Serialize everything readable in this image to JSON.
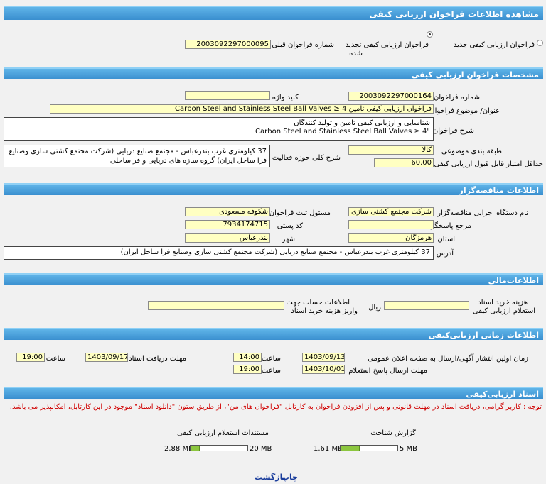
{
  "title": "مشاهده اطلاعات فراخوان ارزیابی کیفی",
  "type_section": {
    "new_label": "فراخوان  ارزیابی  کیفی  جدید",
    "renewed_label_line1": "فراخوان  ارزیابی  کیفی  تجدید",
    "renewed_label_line2": "شده",
    "prev_number_label": "شماره  فراخوان  قبلی",
    "prev_number_value": "2003092297000095"
  },
  "specs": {
    "header": "مشخصات فراخوان ارزیابی کیفی",
    "number_label": "شماره فراخوان",
    "number_value": "2003092297000164",
    "keyword_label": "کلید واژه",
    "keyword_value": "",
    "subject_label": "عنوان/ موضوع فراخوان",
    "subject_value": "فراخوان ارزیابی کیفی تامین Carbon Steel and Stainless Steel Ball Valves ≥ 4",
    "description_label": "شرح فراخوان",
    "description_line1": "شناسایی  و  ارزیابی  کیفی  تامین  و  تولید  کنندگان",
    "description_line2": "Carbon  Steel and Stainless Steel Ball Valves ≥ 4\"",
    "category_label": "طبقه بندی  موضوعی",
    "category_value": "کالا",
    "activity_label": "شرح  کلی  حوزه  فعالیت",
    "activity_text": "37  کیلومتری غرب  بندرعباس - مجتمع  صنایع  دریایی (شرکت  مجتمع  کشتی  سازی  وصنایع فرا ساحل ایران) گروه  سازه  های  دریایی و فراساحلی",
    "min_score_label": "حداقل  امتیاز قابل  قبول  ارزیابی کیفی",
    "min_score_value": "60.00"
  },
  "tenderer": {
    "header": "اطلاعات مناقصه‌گزار",
    "org_label": "نام  دستگاه  اجرایی  مناقصه‌گزار",
    "org_value": "شرکت مجتمع کشتی سازی",
    "registrar_label": "مسئول  ثبت  فراخوان",
    "registrar_value": "شکوفه مسعودی",
    "reference_label": "مرجع  پاسخگویی",
    "reference_value": "",
    "postal_label": "کد  پستی",
    "postal_value": "7934174715",
    "province_label": "استان",
    "province_value": "هرمزگان",
    "city_label": "شهر",
    "city_value": "بندرعباس",
    "address_label": "آدرس",
    "address_value": "37  کیلومتری غرب  بندرعباس - مجتمع  صنایع  دریایی  (شرکت  مجتمع  کشتی  سازی  وصنایع فرا ساحل ایران)"
  },
  "financial": {
    "header": "اطلاعات‌مالی",
    "fee_label_line1": "هزینه خرید اسناد",
    "fee_label_line2": "استعلام  ارزیابی کیفی",
    "fee_value": "",
    "currency": "ریال",
    "account_label_line1": "اطلاعات حساب جهت",
    "account_label_line2": "واریز  هزینه  خرید  اسناد",
    "account_value": ""
  },
  "timing": {
    "header": "اطلاعات زمانی ارزیابی‌کیفی",
    "publish_label": "زمان  اولین  انتشار آگهی/ارسال به  صفحه اعلان عمومی",
    "publish_date": "1403/09/13",
    "time_label": "ساعت",
    "publish_time": "14:00",
    "receive_label": "مهلت  دریافت  اسناد",
    "receive_date": "1403/09/17",
    "receive_time": "19:00",
    "response_label": "مهلت ارسال پاسخ استعلام",
    "response_date": "1403/10/01",
    "response_time": "19:00"
  },
  "documents": {
    "header": "اسناد ارزیابی‌کیفی",
    "notice": "توجه : کاربر گرامی،  دریافت  اسناد  در  مهلت  قانونی  و پس از افزودن  فراخوان  به  کارتابل  \"فراخوان  های  من\"، از طریق  ستون  \"دانلود اسناد\" موجود  در  این  کارتابل،  امکانپذیر  می  باشد.",
    "docs_label": "مستندات  استعلام  ارزیابی  کیفی",
    "docs_used": "2.88 MB",
    "docs_total": "20 MB",
    "docs_fraction": 0.144,
    "recognition_label": "گزارش  شناخت",
    "recog_used": "1.61 MB",
    "recog_total": "5 MB",
    "recog_fraction": 0.322
  },
  "footer": {
    "print": "چاپ",
    "back": "بازگشت"
  },
  "colors": {
    "header_bar": "#3a8fcf",
    "field_bg": "#ffffc2",
    "notice": "#d00000",
    "progress_fill": "#8cc63f"
  }
}
